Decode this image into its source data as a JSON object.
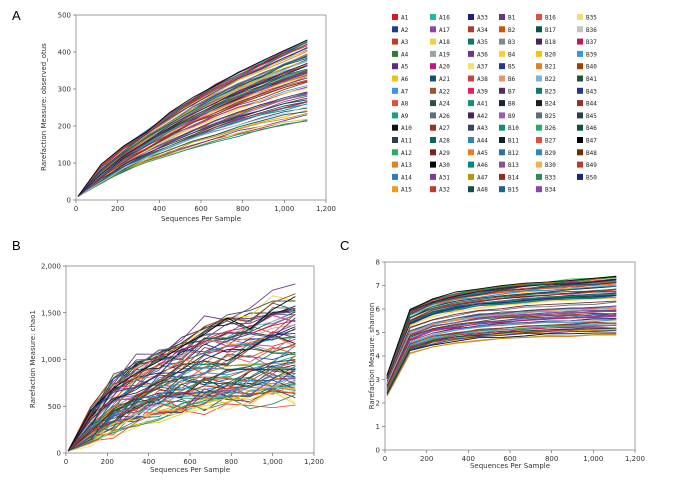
{
  "legend": {
    "columns": [
      [
        "A1",
        "A2",
        "A3",
        "A4",
        "A5",
        "A6",
        "A7",
        "A8",
        "A9",
        "A10",
        "A11",
        "A12",
        "A13",
        "A14",
        "A15"
      ],
      [
        "A16",
        "A17",
        "A18",
        "A19",
        "A20",
        "A21",
        "A22",
        "A24",
        "A26",
        "A27",
        "A28",
        "A29",
        "A30",
        "A31",
        "A32"
      ],
      [
        "A33",
        "A34",
        "A35",
        "A36",
        "A37",
        "A38",
        "A39",
        "A41",
        "A42",
        "A43",
        "A44",
        "A45",
        "A46",
        "A47",
        "A48"
      ],
      [
        "B1",
        "B2",
        "B3",
        "B4",
        "B5",
        "B6",
        "B7",
        "B8",
        "B9",
        "B10",
        "B11",
        "B12",
        "B13",
        "B14",
        "B15"
      ],
      [
        "B16",
        "B17",
        "B18",
        "B20",
        "B21",
        "B22",
        "B23",
        "B24",
        "B25",
        "B26",
        "B27",
        "B29",
        "B30",
        "B33",
        "B34"
      ],
      [
        "B35",
        "B36",
        "B37",
        "B39",
        "B40",
        "B41",
        "B43",
        "B44",
        "B45",
        "B46",
        "B47",
        "B48",
        "B49",
        "B50"
      ]
    ],
    "colors": [
      [
        "#d7191c",
        "#1f3a93",
        "#c0392b",
        "#2e7d32",
        "#5b2c83",
        "#f1c40f",
        "#3498db",
        "#e74c3c",
        "#16a085",
        "#111111",
        "#2c3e50",
        "#27ae60",
        "#e67e22",
        "#2980b9",
        "#f39c12"
      ],
      [
        "#1abc9c",
        "#8e44ad",
        "#f4d03f",
        "#95a5a6",
        "#c71585",
        "#1b4f72",
        "#a0522d",
        "#2f4f4f",
        "#5d6d7e",
        "#943126",
        "#0e6655",
        "#7b241c",
        "#000000",
        "#7d3c98",
        "#c0392b"
      ],
      [
        "#1a237e",
        "#b03a2e",
        "#117864",
        "#6c3483",
        "#f7dc6f",
        "#cb4335",
        "#e91e63",
        "#148f77",
        "#4a235a",
        "#34495e",
        "#2e86c1",
        "#e67e22",
        "#00897b",
        "#b7950b",
        "#0b5345"
      ],
      [
        "#6c3483",
        "#d35400",
        "#7f8c8d",
        "#f4d03f",
        "#283593",
        "#e59866",
        "#512e5f",
        "#1b2631",
        "#9b59b6",
        "#148f77",
        "#17202a",
        "#2874a6",
        "#884ea0",
        "#922b21",
        "#1f618d"
      ],
      [
        "#e74c3c",
        "#0b5345",
        "#4a235a",
        "#f1c40f",
        "#e67e22",
        "#7fb3d5",
        "#117a65",
        "#1c1c1c",
        "#5d6d7e",
        "#27ae60",
        "#e74c3c",
        "#2e86c1",
        "#f5b041",
        "#2e8b57",
        "#8e44ad"
      ],
      [
        "#f7dc6f",
        "#bdc3c7",
        "#c2185b",
        "#3498db",
        "#a04000",
        "#1e5631",
        "#283593",
        "#943126",
        "#2c3e50",
        "#0b5345",
        "#000000",
        "#6e2c00",
        "#c0392b",
        "#1a237e"
      ]
    ]
  },
  "chart_data": [
    {
      "panel": "A",
      "type": "line",
      "xlabel": "Sequences Per Sample",
      "ylabel": "Rarefaction Measure: observed_otus",
      "xlim": [
        0,
        1200
      ],
      "ylim": [
        0,
        500
      ],
      "xticks": [
        0,
        200,
        400,
        600,
        800,
        1000,
        1200
      ],
      "xticklabels": [
        "0",
        "200",
        "400",
        "600",
        "800",
        "1,000",
        "1,200"
      ],
      "yticks": [
        0,
        100,
        200,
        300,
        400,
        500
      ],
      "yticklabels": [
        "0",
        "100",
        "200",
        "300",
        "400",
        "500"
      ],
      "x": [
        10,
        120,
        230,
        340,
        450,
        560,
        670,
        780,
        890,
        1000,
        1110
      ],
      "series_count": 89,
      "final_value_range": [
        208,
        440
      ],
      "series_summary": {
        "max": [
          10,
          95,
          148,
          190,
          238,
          278,
          318,
          350,
          380,
          410,
          440
        ],
        "median": [
          10,
          62,
          108,
          145,
          180,
          212,
          240,
          266,
          290,
          312,
          330
        ],
        "min": [
          10,
          45,
          75,
          100,
          120,
          138,
          155,
          170,
          185,
          196,
          208
        ]
      }
    },
    {
      "panel": "B",
      "type": "line",
      "xlabel": "Sequences Per Sample",
      "ylabel": "Rarefaction Measure: chao1",
      "xlim": [
        0,
        1200
      ],
      "ylim": [
        0,
        2000
      ],
      "xticks": [
        0,
        200,
        400,
        600,
        800,
        1000,
        1200
      ],
      "xticklabels": [
        "0",
        "200",
        "400",
        "600",
        "800",
        "1,000",
        "1,200"
      ],
      "yticks": [
        0,
        500,
        1000,
        1500,
        2000
      ],
      "yticklabels": [
        "0",
        "500",
        "1,000",
        "1,500",
        "2,000"
      ],
      "x": [
        10,
        120,
        230,
        340,
        450,
        560,
        670,
        780,
        890,
        1000,
        1110
      ],
      "series_count": 89,
      "final_value_range": [
        560,
        1780
      ],
      "series_summary": {
        "max": [
          20,
          480,
          820,
          1000,
          1150,
          1280,
          1390,
          1500,
          1580,
          1680,
          1780
        ],
        "median": [
          20,
          250,
          440,
          560,
          660,
          740,
          800,
          850,
          890,
          920,
          950
        ],
        "min": [
          20,
          150,
          240,
          320,
          380,
          420,
          460,
          500,
          520,
          550,
          560
        ]
      }
    },
    {
      "panel": "C",
      "type": "line",
      "xlabel": "Sequences Per Sample",
      "ylabel": "Rarefaction Measure: shannon",
      "xlim": [
        0,
        1200
      ],
      "ylim": [
        0,
        8
      ],
      "xticks": [
        0,
        200,
        400,
        600,
        800,
        1000,
        1200
      ],
      "xticklabels": [
        "0",
        "200",
        "400",
        "600",
        "800",
        "1,000",
        "1,200"
      ],
      "yticks": [
        0,
        1,
        2,
        3,
        4,
        5,
        6,
        7,
        8
      ],
      "yticklabels": [
        "0",
        "1",
        "2",
        "3",
        "4",
        "5",
        "6",
        "7",
        "8"
      ],
      "x": [
        10,
        120,
        230,
        340,
        450,
        560,
        670,
        780,
        890,
        1000,
        1110
      ],
      "series_count": 89,
      "final_value_range": [
        4.9,
        7.4
      ],
      "series_summary": {
        "max": [
          3.2,
          6.0,
          6.45,
          6.7,
          6.85,
          6.98,
          7.08,
          7.17,
          7.24,
          7.32,
          7.4
        ],
        "median": [
          3.0,
          5.3,
          5.7,
          5.9,
          6.05,
          6.15,
          6.25,
          6.3,
          6.35,
          6.4,
          6.45
        ],
        "min": [
          2.3,
          4.1,
          4.4,
          4.55,
          4.65,
          4.72,
          4.78,
          4.82,
          4.86,
          4.88,
          4.9
        ]
      }
    }
  ],
  "panel_labels": [
    "A",
    "B",
    "C"
  ]
}
